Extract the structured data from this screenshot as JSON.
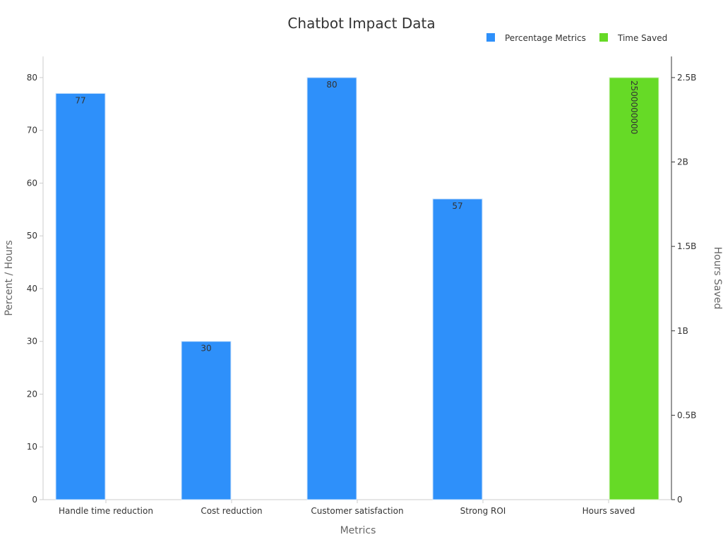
{
  "chart_data": {
    "type": "bar",
    "title": "Chatbot Impact Data",
    "xlabel": "Metrics",
    "ylabel": "Percent / Hours",
    "y2label": "Hours Saved",
    "categories": [
      "Handle time reduction",
      "Cost reduction",
      "Customer satisfaction",
      "Strong ROI",
      "Hours saved"
    ],
    "ylim": [
      0,
      84
    ],
    "y2lim": [
      0,
      2625000000
    ],
    "yticks": [
      0,
      10,
      20,
      30,
      40,
      50,
      60,
      70,
      80
    ],
    "y2ticks": [
      {
        "value": 0,
        "label": "0"
      },
      {
        "value": 500000000,
        "label": "0.5B"
      },
      {
        "value": 1000000000,
        "label": "1B"
      },
      {
        "value": 1500000000,
        "label": "1.5B"
      },
      {
        "value": 2000000000,
        "label": "2B"
      },
      {
        "value": 2500000000,
        "label": "2.5B"
      }
    ],
    "legend_position": "top-right",
    "grid": false,
    "series": [
      {
        "name": "Percentage Metrics",
        "axis": "left",
        "color": "#2e90fa",
        "values": [
          77,
          30,
          80,
          57,
          null
        ],
        "labels": [
          "77",
          "30",
          "80",
          "57",
          ""
        ]
      },
      {
        "name": "Time Saved",
        "axis": "right",
        "color": "#66da26",
        "values": [
          null,
          null,
          null,
          null,
          2500000000
        ],
        "labels": [
          "",
          "",
          "",
          "",
          "2500000000"
        ]
      }
    ]
  }
}
